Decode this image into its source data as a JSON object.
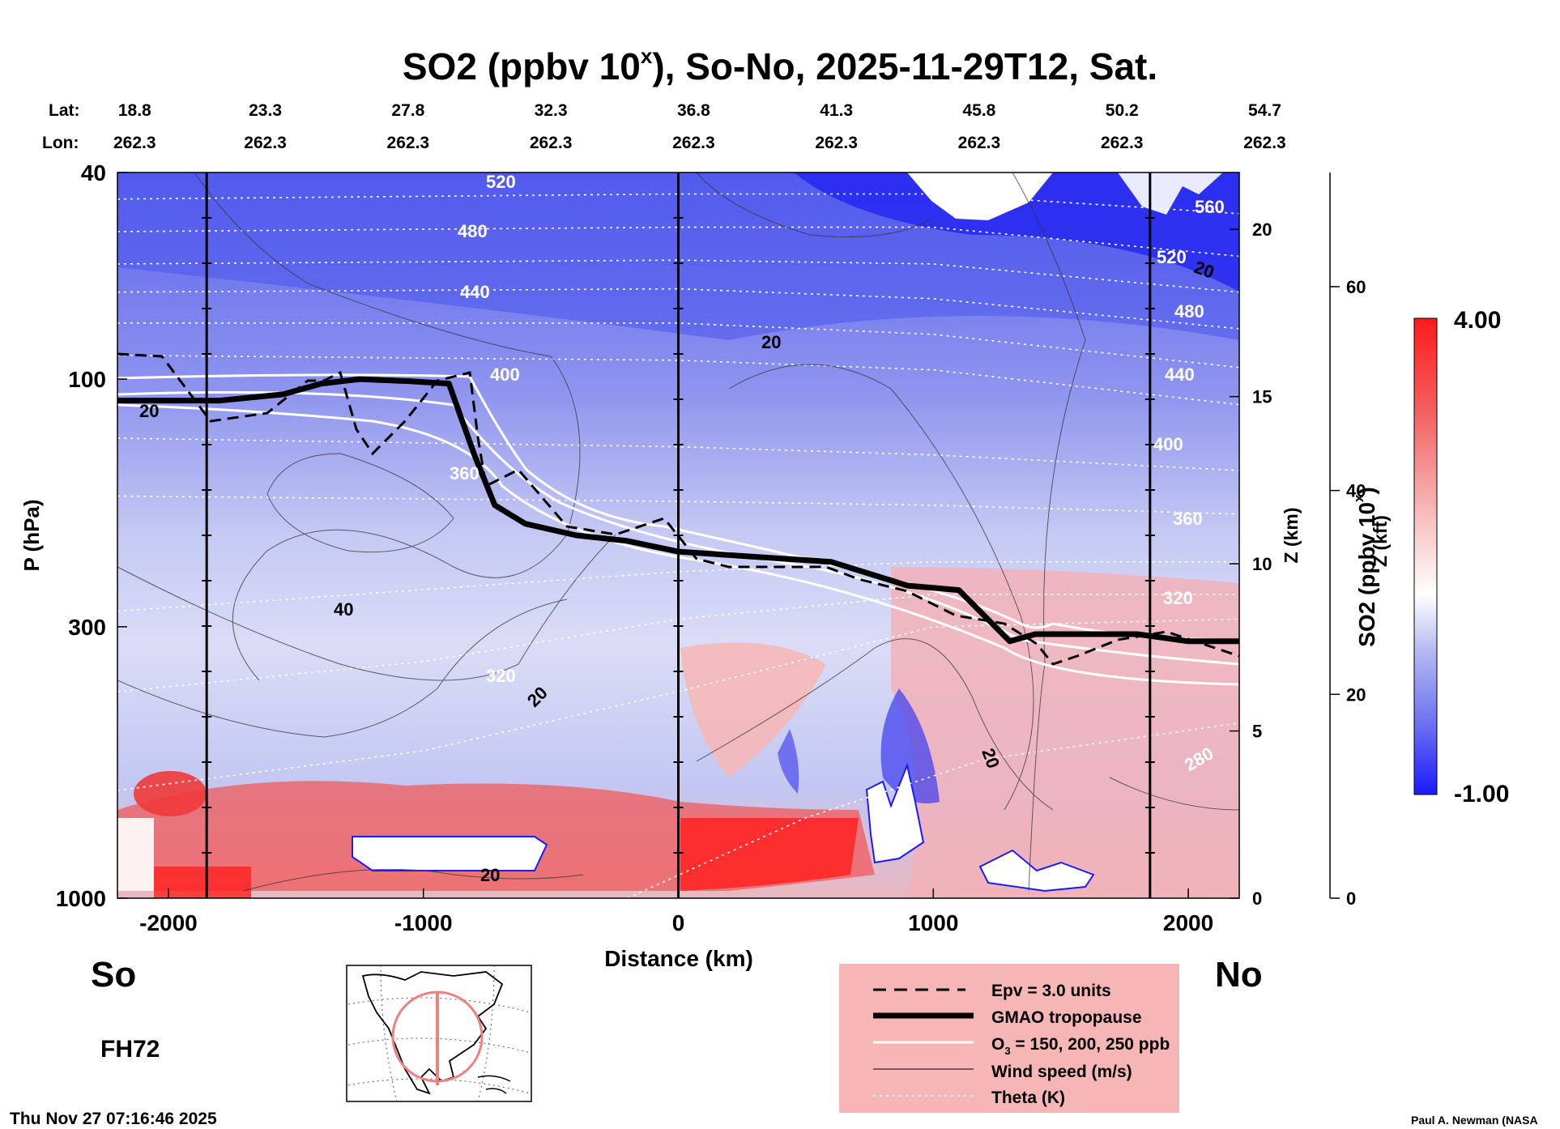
{
  "title": {
    "prefix": "SO2 (ppbv 10",
    "sup": "x",
    "suffix": "), So-No, 2025-11-29T12, Sat."
  },
  "header": {
    "lat_label": "Lat:",
    "lon_label": "Lon:",
    "lats": [
      "18.8",
      "23.3",
      "27.8",
      "32.3",
      "36.8",
      "41.3",
      "45.8",
      "50.2",
      "54.7"
    ],
    "lons": [
      "262.3",
      "262.3",
      "262.3",
      "262.3",
      "262.3",
      "262.3",
      "262.3",
      "262.3",
      "262.3"
    ]
  },
  "chart_data": {
    "type": "heatmap",
    "title": "SO2 (ppbv 10^x), So-No, 2025-11-29T12, Sat.",
    "xlabel": "Distance (km)",
    "ylabel": "P (hPa)",
    "xlim": [
      -2200,
      2200
    ],
    "ylim": [
      1000,
      40
    ],
    "x_ticks": [
      -2000,
      -1000,
      0,
      1000,
      2000
    ],
    "x_tick_labels": [
      "-2000",
      "-1000",
      "0",
      "1000",
      "2000"
    ],
    "y_ticks": [
      1000,
      300,
      100,
      40
    ],
    "y_tick_labels": [
      "1000",
      "300",
      "100",
      "40"
    ],
    "z_km_label": "Z (km)",
    "z_km_ticks": [
      "0",
      "5",
      "10",
      "15",
      "20"
    ],
    "z_kft_label": "Z (kft)",
    "z_kft_ticks": [
      "0",
      "20",
      "40",
      "60"
    ],
    "colorbar": {
      "label_prefix": "SO2 (ppbv 10",
      "label_sup": "x",
      "label_suffix": ")",
      "min": -1.0,
      "max": 4.0,
      "min_label": "-1.00",
      "max_label": "4.00",
      "colors": [
        "#1a1aff",
        "#6e72f0",
        "#b4b8f2",
        "#ffffff",
        "#f8b8b8",
        "#f26262",
        "#ff1a1a"
      ]
    },
    "theta_contours_K": [
      {
        "value": 520,
        "label": "520"
      },
      {
        "value": 480,
        "label": "480"
      },
      {
        "value": 440,
        "label": "440"
      },
      {
        "value": 400,
        "label": "400"
      },
      {
        "value": 360,
        "label": "360"
      },
      {
        "value": 320,
        "label": "320"
      },
      {
        "value": 280,
        "label": "280"
      }
    ],
    "theta_labels_right": [
      "560",
      "520",
      "480",
      "440",
      "400",
      "360",
      "320",
      "280"
    ],
    "wind_speed_labels": [
      "20",
      "20",
      "40",
      "20",
      "20",
      "20",
      "20"
    ],
    "tropopause_hPa": [
      {
        "km": -2200,
        "p": 110
      },
      {
        "km": -1800,
        "p": 110
      },
      {
        "km": -1550,
        "p": 107
      },
      {
        "km": -1400,
        "p": 102
      },
      {
        "km": -1250,
        "p": 100
      },
      {
        "km": -1050,
        "p": 101
      },
      {
        "km": -900,
        "p": 102
      },
      {
        "km": -800,
        "p": 140
      },
      {
        "km": -720,
        "p": 175
      },
      {
        "km": -600,
        "p": 190
      },
      {
        "km": -400,
        "p": 200
      },
      {
        "km": -200,
        "p": 205
      },
      {
        "km": 0,
        "p": 215
      },
      {
        "km": 300,
        "p": 220
      },
      {
        "km": 600,
        "p": 225
      },
      {
        "km": 900,
        "p": 250
      },
      {
        "km": 1100,
        "p": 255
      },
      {
        "km": 1300,
        "p": 320
      },
      {
        "km": 1400,
        "p": 310
      },
      {
        "km": 1600,
        "p": 310
      },
      {
        "km": 1800,
        "p": 310
      },
      {
        "km": 2000,
        "p": 320
      },
      {
        "km": 2200,
        "p": 320
      }
    ],
    "section_markers_km": [
      -1850,
      0,
      1850
    ],
    "legend": [
      {
        "label": "Epv = 3.0 units",
        "style": "dashed"
      },
      {
        "label": "GMAO tropopause",
        "style": "thick"
      },
      {
        "label_prefix": "O",
        "label_sub": "3",
        "label_suffix": " = 150, 200, 250 ppb",
        "style": "white"
      },
      {
        "label": "Wind speed (m/s)",
        "style": "thin"
      },
      {
        "label": "Theta (K)",
        "style": "dotted"
      }
    ]
  },
  "labels": {
    "south": "So",
    "north": "No",
    "forecast_hour": "FH72",
    "timestamp": "Thu Nov 27 07:16:46 2025",
    "credit": "Paul A. Newman (NASA"
  }
}
